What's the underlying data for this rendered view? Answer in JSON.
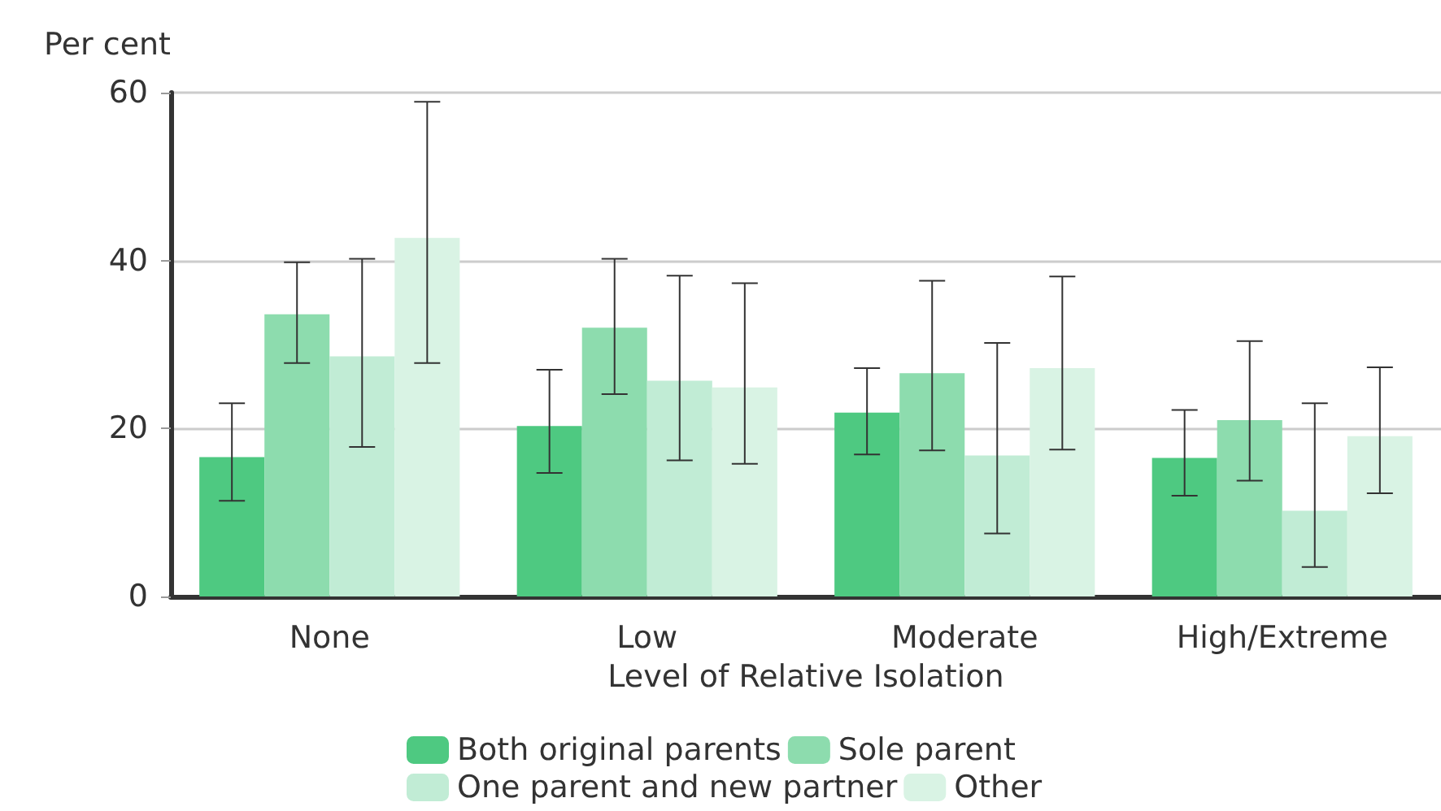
{
  "chart_data": {
    "type": "bar",
    "ylabel": "Per cent",
    "xlabel": "Level of Relative Isolation",
    "categories": [
      "None",
      "Low",
      "Moderate",
      "High/Extreme"
    ],
    "series": [
      {
        "name": "Both original parents",
        "color": "#4ec981",
        "values": [
          16.6,
          20.3,
          21.9,
          16.5
        ],
        "errors": [
          [
            11.4,
            23.0
          ],
          [
            14.7,
            27.0
          ],
          [
            16.9,
            27.2
          ],
          [
            12.0,
            22.2
          ]
        ]
      },
      {
        "name": "Sole parent",
        "color": "#8ddcae",
        "values": [
          33.6,
          32.0,
          26.6,
          21.0
        ],
        "errors": [
          [
            27.8,
            39.8
          ],
          [
            24.1,
            40.2
          ],
          [
            17.4,
            37.6
          ],
          [
            13.8,
            30.4
          ]
        ]
      },
      {
        "name": "One parent and new partner",
        "color": "#c1ecd5",
        "values": [
          28.6,
          25.7,
          16.8,
          10.2
        ],
        "errors": [
          [
            17.8,
            40.2
          ],
          [
            16.2,
            38.2
          ],
          [
            7.5,
            30.2
          ],
          [
            3.5,
            23.0
          ]
        ]
      },
      {
        "name": "Other",
        "color": "#d9f3e4",
        "values": [
          42.7,
          24.9,
          27.2,
          19.1
        ],
        "errors": [
          [
            27.8,
            58.9
          ],
          [
            15.8,
            37.3
          ],
          [
            17.5,
            38.1
          ],
          [
            12.3,
            27.3
          ]
        ]
      }
    ],
    "ylim": [
      0,
      60
    ],
    "yticks": [
      0,
      20,
      40,
      60
    ],
    "grid": "y",
    "legend": "bottom"
  }
}
